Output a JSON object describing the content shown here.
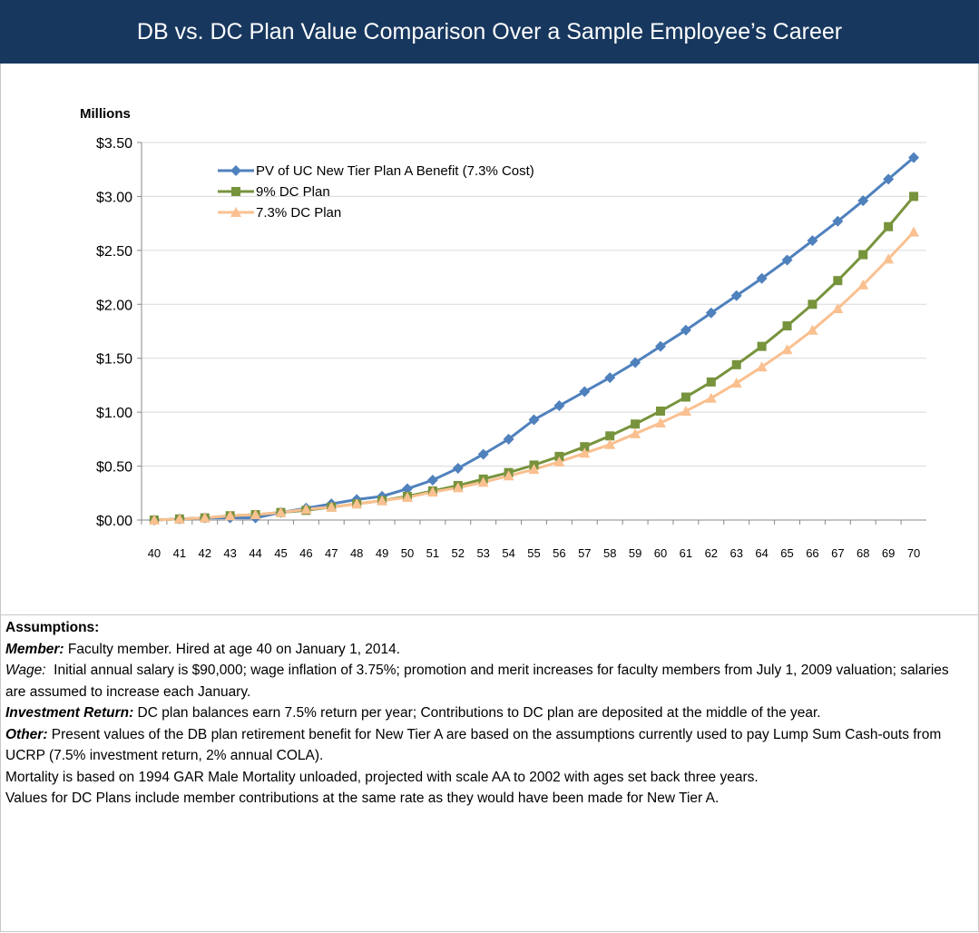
{
  "header": {
    "title": "DB vs. DC Plan Value Comparison Over a Sample Employee’s Career"
  },
  "chart_data": {
    "type": "line",
    "y_axis_label": "Millions",
    "categories": [
      40,
      41,
      42,
      43,
      44,
      45,
      46,
      47,
      48,
      49,
      50,
      51,
      52,
      53,
      54,
      55,
      56,
      57,
      58,
      59,
      60,
      61,
      62,
      63,
      64,
      65,
      66,
      67,
      68,
      69,
      70
    ],
    "series": [
      {
        "name": "PV of UC New Tier Plan A Benefit (7.3% Cost)",
        "color": "#4f81bd",
        "marker": "diamond",
        "values": [
          0,
          0.01,
          0.02,
          0.02,
          0.02,
          0.07,
          0.11,
          0.15,
          0.19,
          0.22,
          0.29,
          0.37,
          0.48,
          0.61,
          0.75,
          0.93,
          1.06,
          1.19,
          1.32,
          1.46,
          1.61,
          1.76,
          1.92,
          2.08,
          2.24,
          2.41,
          2.59,
          2.77,
          2.96,
          3.16,
          3.36
        ]
      },
      {
        "name": "9% DC Plan",
        "color": "#77933c",
        "marker": "square",
        "values": [
          0,
          0.01,
          0.02,
          0.04,
          0.05,
          0.07,
          0.09,
          0.12,
          0.15,
          0.18,
          0.22,
          0.27,
          0.32,
          0.38,
          0.44,
          0.51,
          0.59,
          0.68,
          0.78,
          0.89,
          1.01,
          1.14,
          1.28,
          1.44,
          1.61,
          1.8,
          2.0,
          2.22,
          2.46,
          2.72,
          3.0
        ]
      },
      {
        "name": "7.3% DC Plan",
        "color": "#fac090",
        "marker": "triangle",
        "values": [
          0,
          0.01,
          0.02,
          0.04,
          0.05,
          0.07,
          0.1,
          0.12,
          0.15,
          0.18,
          0.21,
          0.26,
          0.3,
          0.35,
          0.41,
          0.47,
          0.54,
          0.62,
          0.7,
          0.8,
          0.9,
          1.01,
          1.13,
          1.27,
          1.42,
          1.58,
          1.76,
          1.96,
          2.18,
          2.42,
          2.67
        ]
      }
    ],
    "ylim": [
      0,
      3.5
    ],
    "yticks": [
      {
        "value": 0,
        "label": "$0.00"
      },
      {
        "value": 0.5,
        "label": "$0.50"
      },
      {
        "value": 1,
        "label": "$1.00"
      },
      {
        "value": 1.5,
        "label": "$1.50"
      },
      {
        "value": 2,
        "label": "$2.00"
      },
      {
        "value": 2.5,
        "label": "$2.50"
      },
      {
        "value": 3,
        "label": "$3.00"
      },
      {
        "value": 3.5,
        "label": "$3.50"
      }
    ],
    "grid": true,
    "legend": "top-left"
  },
  "assumptions": {
    "heading": "Assumptions:",
    "items": [
      {
        "label": "Member:",
        "emphasis": "bold-italic",
        "text": " Faculty member. Hired at age 40 on January 1, 2014."
      },
      {
        "label": "Wage:",
        "emphasis": "italic",
        "text": "  Initial annual salary is $90,000; wage inflation of 3.75%; promotion and merit increases for faculty members from July 1, 2009 valuation; salaries are assumed to increase each January."
      },
      {
        "label": "Investment Return:",
        "emphasis": "bold-italic",
        "text": " DC plan balances earn 7.5% return per year; Contributions to DC plan are deposited at the middle of the year."
      },
      {
        "label": "Other:",
        "emphasis": "bold-italic",
        "text": " Present values of the DB plan retirement benefit for New Tier A are based on the assumptions currently used to pay Lump Sum Cash-outs from UCRP (7.5% investment return, 2% annual COLA)."
      },
      {
        "text": "Mortality is based on 1994 GAR Male Mortality unloaded, projected with scale AA to 2002 with ages set back three years."
      },
      {
        "text": "Values for DC Plans include member contributions at the same rate as they would have been made for New Tier A."
      }
    ]
  }
}
